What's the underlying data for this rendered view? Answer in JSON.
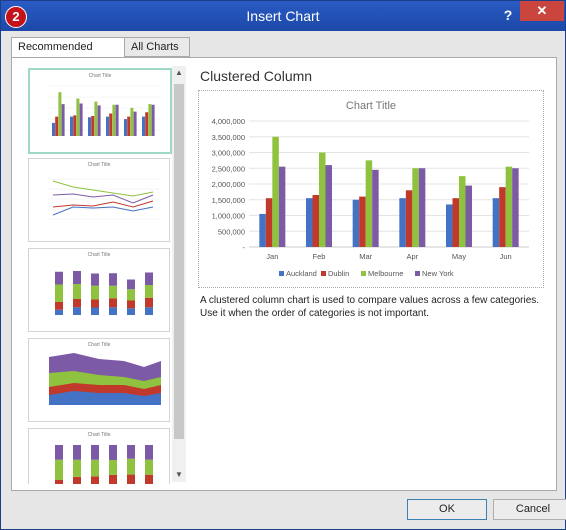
{
  "window": {
    "title": "Insert Chart",
    "badge": "2",
    "help": "?",
    "close": "✕"
  },
  "tabs": [
    {
      "label": "Recommended Charts",
      "active": true
    },
    {
      "label": "All Charts",
      "active": false
    }
  ],
  "preview": {
    "heading": "Clustered Column",
    "description": "A clustered column chart is used to compare values across a few categories. Use it when the order of categories is not important."
  },
  "thumbnails": [
    {
      "title": "Chart Title",
      "kind": "clustered-column"
    },
    {
      "title": "Chart Title",
      "kind": "line"
    },
    {
      "title": "Chart Title",
      "kind": "stacked-column"
    },
    {
      "title": "Chart Title",
      "kind": "stacked-area"
    },
    {
      "title": "Chart Title",
      "kind": "100-stacked-column"
    }
  ],
  "buttons": {
    "ok": "OK",
    "cancel": "Cancel"
  },
  "colors": {
    "Auckland": "#4472c4",
    "Dublin": "#c0392b",
    "Melbourne": "#8fc23f",
    "New York": "#7c5aa6"
  },
  "chart_data": {
    "type": "bar",
    "title": "Chart Title",
    "categories": [
      "Jan",
      "Feb",
      "Mar",
      "Apr",
      "May",
      "Jun"
    ],
    "series": [
      {
        "name": "Auckland",
        "values": [
          1050000,
          1550000,
          1500000,
          1550000,
          1350000,
          1550000
        ]
      },
      {
        "name": "Dublin",
        "values": [
          1550000,
          1650000,
          1600000,
          1800000,
          1550000,
          1900000
        ]
      },
      {
        "name": "Melbourne",
        "values": [
          3500000,
          3000000,
          2750000,
          2500000,
          2250000,
          2550000
        ]
      },
      {
        "name": "New York",
        "values": [
          2550000,
          2600000,
          2450000,
          2500000,
          1950000,
          2500000
        ]
      }
    ],
    "yticks": [
      "4,000,000",
      "3,500,000",
      "3,000,000",
      "2,500,000",
      "2,000,000",
      "1,500,000",
      "1,000,000",
      "500,000",
      "-"
    ],
    "ylim": [
      0,
      4000000
    ],
    "grid": true,
    "legend": "bottom",
    "xlabel": "",
    "ylabel": ""
  }
}
